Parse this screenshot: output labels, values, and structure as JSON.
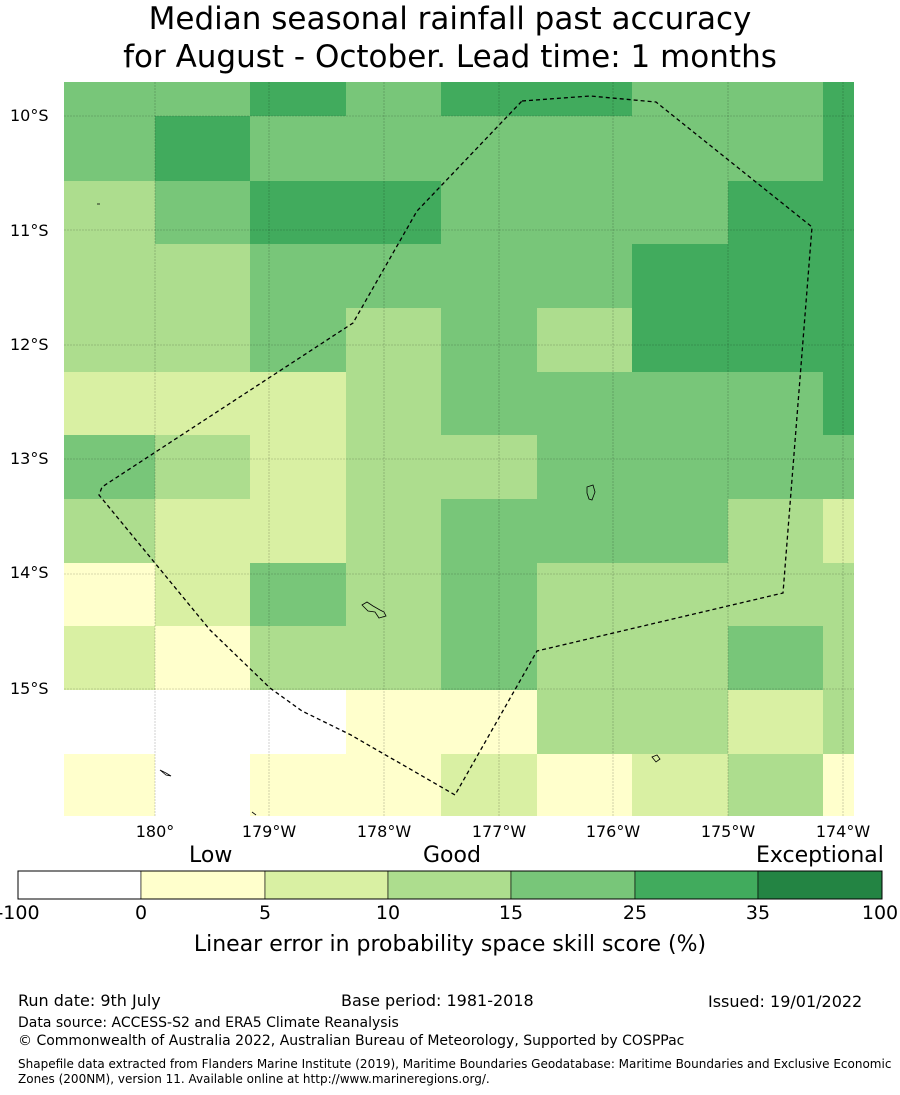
{
  "title": {
    "line1": "Median seasonal rainfall past accuracy",
    "line2": "for August - October. Lead time: 1 months"
  },
  "map": {
    "lat_labels": [
      "10°S",
      "11°S",
      "12°S",
      "13°S",
      "14°S",
      "15°S"
    ],
    "lon_labels": [
      "180°",
      "179°W",
      "178°W",
      "177°W",
      "176°W",
      "175°W",
      "174°W"
    ],
    "colors": [
      "#ffffff",
      "#ffffcc",
      "#d9f0a3",
      "#addd8e",
      "#78c679",
      "#41ab5d",
      "#238443"
    ],
    "grid_rows_north_to_south": [
      [
        4,
        4,
        5,
        4,
        5,
        5,
        4,
        4,
        5
      ],
      [
        4,
        5,
        4,
        4,
        4,
        4,
        4,
        4,
        5
      ],
      [
        3,
        4,
        5,
        5,
        4,
        4,
        4,
        5,
        5
      ],
      [
        3,
        3,
        4,
        4,
        4,
        4,
        5,
        5,
        5
      ],
      [
        3,
        3,
        4,
        3,
        4,
        3,
        5,
        5,
        5
      ],
      [
        2,
        2,
        2,
        3,
        4,
        4,
        4,
        4,
        5
      ],
      [
        4,
        3,
        2,
        3,
        3,
        4,
        4,
        4,
        4
      ],
      [
        3,
        2,
        2,
        3,
        4,
        4,
        4,
        3,
        2
      ],
      [
        1,
        2,
        4,
        3,
        4,
        3,
        3,
        3,
        3
      ],
      [
        2,
        1,
        3,
        3,
        4,
        3,
        3,
        4,
        3
      ],
      [
        0,
        0,
        0,
        1,
        1,
        3,
        3,
        2,
        3
      ],
      [
        1,
        0,
        1,
        1,
        2,
        1,
        2,
        3,
        1
      ]
    ]
  },
  "legend": {
    "categories": [
      "Low",
      "Good",
      "Exceptional"
    ],
    "ticks": [
      "-100",
      "0",
      "5",
      "10",
      "15",
      "25",
      "35",
      "100"
    ],
    "axis_title": "Linear error in probability space skill score (%)"
  },
  "footer": {
    "run_date": "Run date: 9th July",
    "base_period": "Base period: 1981-2018",
    "issued": "Issued: 19/01/2022",
    "data_source": "Data source: ACCESS-S2 and ERA5 Climate Reanalysis",
    "copyright": "© Commonwealth of Australia 2022, Australian Bureau of Meteorology, Supported by COSPPac",
    "shapefile": "Shapefile data extracted from Flanders Marine Institute (2019), Maritime Boundaries Geodatabase: Maritime Boundaries and Exclusive Economic Zones (200NM), version 11. Available online at http://www.marineregions.org/."
  }
}
